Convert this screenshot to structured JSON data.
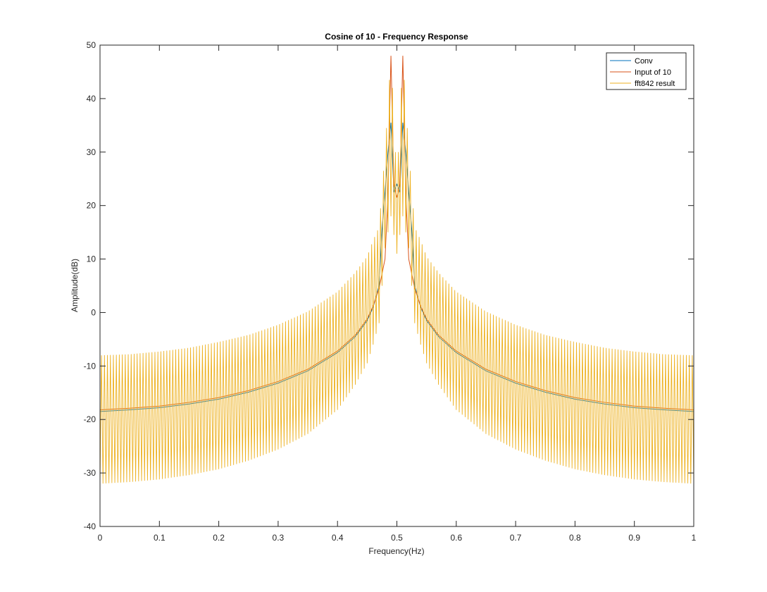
{
  "chart_data": {
    "type": "line",
    "title": "Cosine of 10 - Frequency Response",
    "xlabel": "Frequency(Hz)",
    "ylabel": "Amplitude(dB)",
    "xlim": [
      0,
      1
    ],
    "ylim": [
      -40,
      50
    ],
    "xticks": [
      0,
      0.1,
      0.2,
      0.3,
      0.4,
      0.5,
      0.6,
      0.7,
      0.8,
      0.9,
      1
    ],
    "xtick_labels": [
      "0",
      "0.1",
      "0.2",
      "0.3",
      "0.4",
      "0.5",
      "0.6",
      "0.7",
      "0.8",
      "0.9",
      "1"
    ],
    "yticks": [
      -40,
      -30,
      -20,
      -10,
      0,
      10,
      20,
      30,
      40,
      50
    ],
    "ytick_labels": [
      "-40",
      "-30",
      "-20",
      "-10",
      "0",
      "10",
      "20",
      "30",
      "40",
      "50"
    ],
    "grid": false,
    "legend_position": "top-right",
    "series": [
      {
        "name": "Conv",
        "color": "#0072BD",
        "x": [
          0,
          0.05,
          0.1,
          0.15,
          0.2,
          0.25,
          0.3,
          0.35,
          0.4,
          0.43,
          0.45,
          0.46,
          0.47,
          0.475,
          0.48,
          0.485,
          0.49,
          0.495,
          0.5,
          0.505,
          0.51,
          0.515,
          0.52,
          0.525,
          0.53,
          0.54,
          0.55,
          0.57,
          0.6,
          0.65,
          0.7,
          0.75,
          0.8,
          0.85,
          0.9,
          0.95,
          1
        ],
        "y": [
          -18.5,
          -18.2,
          -17.8,
          -17.1,
          -16.2,
          -14.9,
          -13.2,
          -10.9,
          -7.5,
          -4.5,
          -1.5,
          1,
          5,
          15.5,
          22.5,
          30,
          35.5,
          22.5,
          24,
          22.5,
          35.5,
          30,
          22.5,
          15.5,
          5,
          1,
          -1.5,
          -4.5,
          -7.5,
          -10.9,
          -13.2,
          -14.9,
          -16.2,
          -17.1,
          -17.8,
          -18.2,
          -18.5
        ]
      },
      {
        "name": "Input of 10",
        "color": "#D95319",
        "x": [
          0,
          0.05,
          0.1,
          0.15,
          0.2,
          0.25,
          0.3,
          0.35,
          0.4,
          0.43,
          0.45,
          0.46,
          0.47,
          0.48,
          0.485,
          0.49,
          0.495,
          0.5,
          0.505,
          0.51,
          0.515,
          0.52,
          0.53,
          0.54,
          0.55,
          0.57,
          0.6,
          0.65,
          0.7,
          0.75,
          0.8,
          0.85,
          0.9,
          0.95,
          1
        ],
        "y": [
          -18.2,
          -17.9,
          -17.5,
          -16.8,
          -15.9,
          -14.6,
          -12.9,
          -10.6,
          -7.2,
          -4.2,
          -1.2,
          1.2,
          4.5,
          10,
          22,
          48,
          24,
          21.5,
          24,
          48,
          22,
          10,
          4.5,
          1.2,
          -1.2,
          -4.2,
          -7.2,
          -10.6,
          -12.9,
          -14.6,
          -15.9,
          -16.8,
          -17.5,
          -17.9,
          -18.2
        ]
      },
      {
        "name": "fft842 result",
        "color": "#EDB120",
        "oscillating": true,
        "x": [
          0,
          0.05,
          0.1,
          0.15,
          0.2,
          0.25,
          0.3,
          0.35,
          0.4,
          0.43,
          0.45,
          0.46,
          0.47,
          0.48,
          0.49,
          0.5,
          0.51,
          0.52,
          0.53,
          0.54,
          0.55,
          0.57,
          0.6,
          0.65,
          0.7,
          0.75,
          0.8,
          0.85,
          0.9,
          0.95,
          1
        ],
        "upper": [
          -8,
          -7.8,
          -7.3,
          -6.6,
          -5.5,
          -4.2,
          -2.3,
          0.2,
          3.9,
          7.5,
          10.5,
          13.5,
          16,
          30,
          48,
          24,
          48,
          30,
          16,
          13.5,
          10.5,
          7.5,
          3.9,
          0.2,
          -2.3,
          -4.2,
          -5.5,
          -6.6,
          -7.3,
          -7.8,
          -8
        ],
        "lower": [
          -32,
          -31.7,
          -31.2,
          -30.4,
          -29.3,
          -27.7,
          -25.6,
          -22.7,
          -18.2,
          -13.5,
          -9.5,
          -6,
          -2,
          12,
          18,
          11,
          18,
          12,
          -2,
          -6,
          -9.5,
          -13.5,
          -18.2,
          -22.7,
          -25.6,
          -27.7,
          -29.3,
          -30.4,
          -31.2,
          -31.7,
          -32
        ],
        "cycles": 200
      }
    ]
  }
}
